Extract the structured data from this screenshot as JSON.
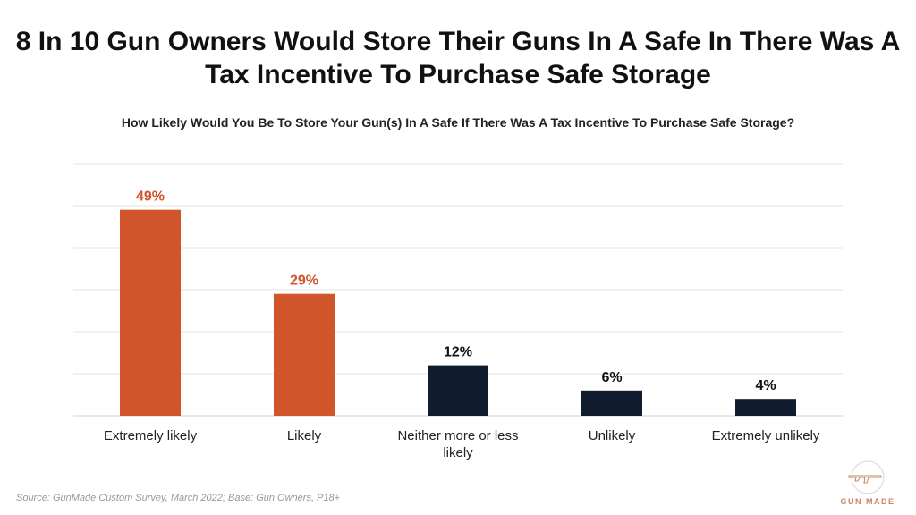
{
  "chart_data": {
    "type": "bar",
    "title": "8 In 10 Gun Owners Would Store Their Guns In A Safe In There Was A Tax Incentive To Purchase Safe Storage",
    "subtitle": "How Likely Would You Be To Store Your Gun(s) In A Safe If There Was A Tax Incentive To Purchase Safe Storage?",
    "categories": [
      "Extremely likely",
      "Likely",
      "Neither more or less likely",
      "Unlikely",
      "Extremely unlikely"
    ],
    "values": [
      49,
      29,
      12,
      6,
      4
    ],
    "data_labels": [
      "49%",
      "29%",
      "12%",
      "6%",
      "4%"
    ],
    "colors": [
      "#D0552B",
      "#D0552B",
      "#111B2E",
      "#111B2E",
      "#111B2E"
    ],
    "label_colors": [
      "#D0552B",
      "#D0552B",
      "#111111",
      "#111111",
      "#111111"
    ],
    "ylim": [
      0,
      60
    ],
    "grid": true,
    "xlabel": "",
    "ylabel": ""
  },
  "source": "Source: GunMade Custom Survey, March 2022; Base: Gun Owners, P18+",
  "logo": {
    "text": "GUN MADE",
    "color": "#C8845E"
  }
}
